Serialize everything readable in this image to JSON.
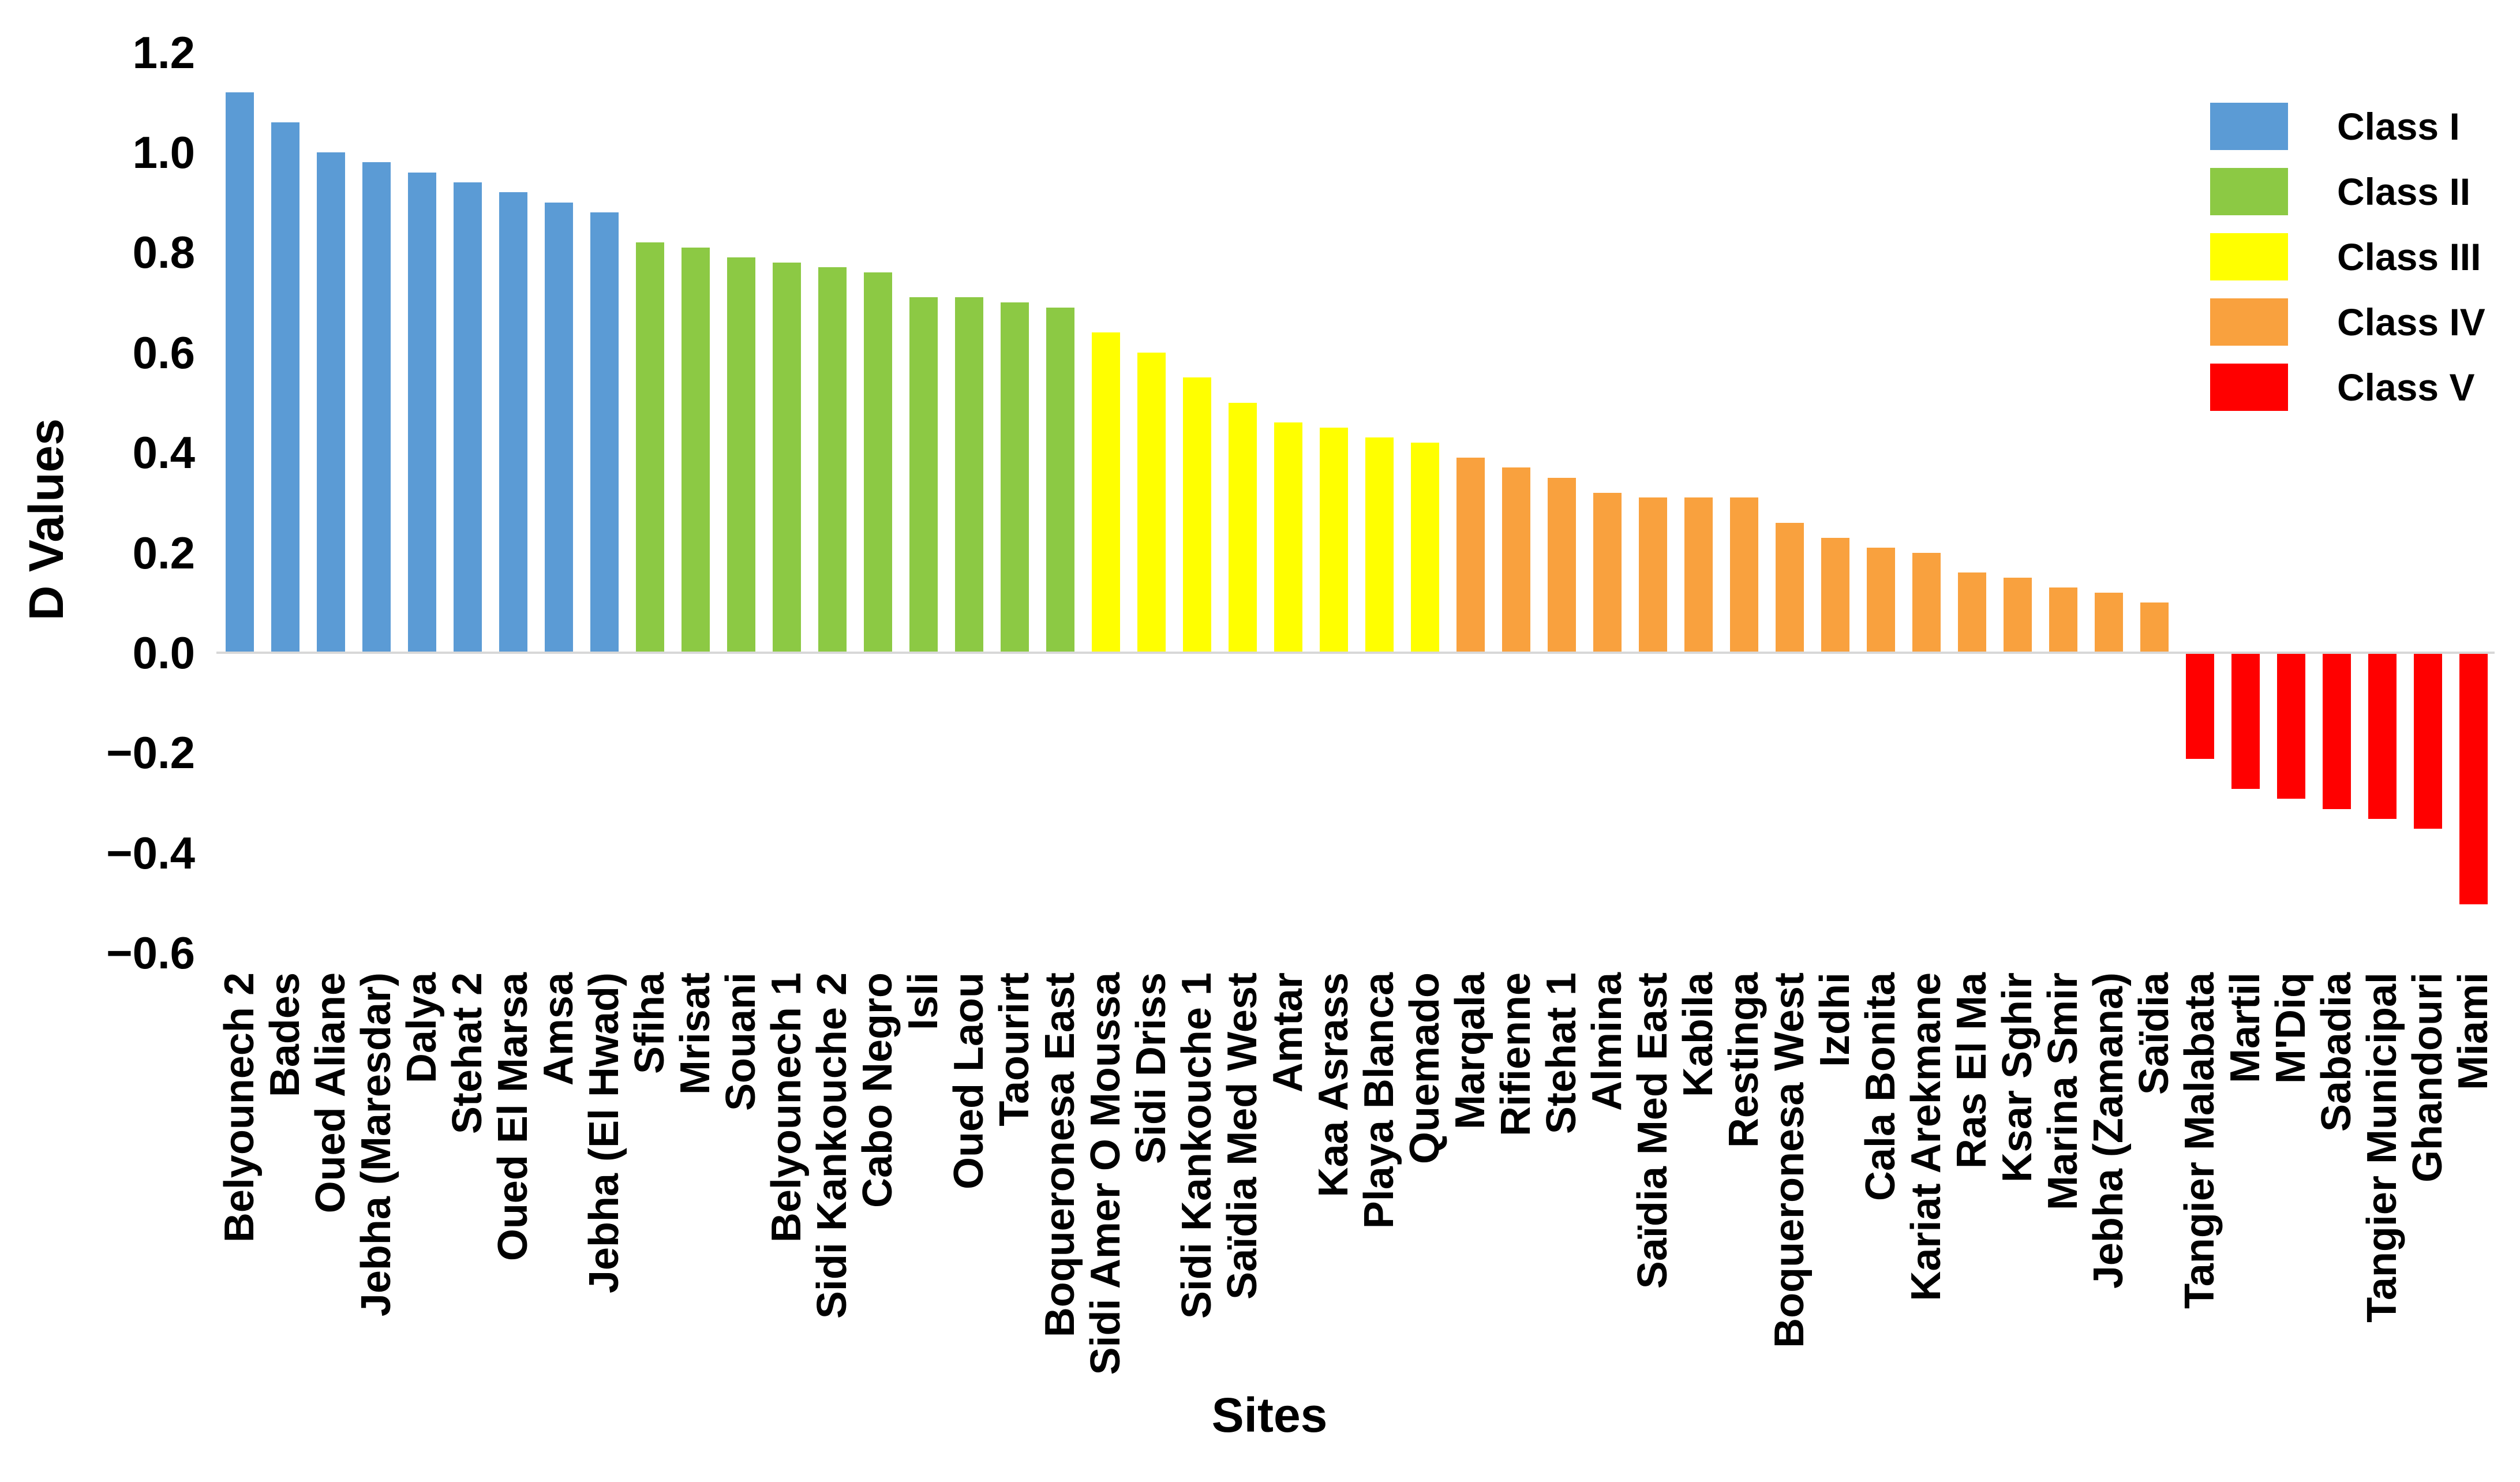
{
  "chart_data": {
    "type": "bar",
    "title": "",
    "xlabel": "Sites",
    "ylabel": "D Values",
    "ylim": [
      -0.6,
      1.2
    ],
    "ytick_step": 0.2,
    "grid": false,
    "legend_position": "top-right",
    "yticks": [
      {
        "label": "1.2",
        "value": 1.2
      },
      {
        "label": "1.0",
        "value": 1.0
      },
      {
        "label": "0.8",
        "value": 0.8
      },
      {
        "label": "0.6",
        "value": 0.6
      },
      {
        "label": "0.4",
        "value": 0.4
      },
      {
        "label": "0.2",
        "value": 0.2
      },
      {
        "label": "0.0",
        "value": 0.0
      },
      {
        "label": "−0.2",
        "value": -0.2
      },
      {
        "label": "−0.4",
        "value": -0.4
      },
      {
        "label": "−0.6",
        "value": -0.6
      }
    ],
    "classes": [
      {
        "name": "Class I",
        "color": "#5B9BD5"
      },
      {
        "name": "Class II",
        "color": "#8CC944"
      },
      {
        "name": "Class III",
        "color": "#FFFF00"
      },
      {
        "name": "Class IV",
        "color": "#F9A13E"
      },
      {
        "name": "Class V",
        "color": "#FF0000"
      }
    ],
    "series": [
      {
        "site": "Belyounech 2",
        "class": "Class I",
        "value": 1.12
      },
      {
        "site": "Bades",
        "class": "Class I",
        "value": 1.06
      },
      {
        "site": "Oued Aliane",
        "class": "Class I",
        "value": 1.0
      },
      {
        "site": "Jebha (Maresdar)",
        "class": "Class I",
        "value": 0.98
      },
      {
        "site": "Dalya",
        "class": "Class I",
        "value": 0.96
      },
      {
        "site": "Stehat 2",
        "class": "Class I",
        "value": 0.94
      },
      {
        "site": "Oued El Marsa",
        "class": "Class I",
        "value": 0.92
      },
      {
        "site": "Amsa",
        "class": "Class I",
        "value": 0.9
      },
      {
        "site": "Jebha (El Hwad)",
        "class": "Class I",
        "value": 0.88
      },
      {
        "site": "Sfiha",
        "class": "Class II",
        "value": 0.82
      },
      {
        "site": "Mrisat",
        "class": "Class II",
        "value": 0.81
      },
      {
        "site": "Souani",
        "class": "Class II",
        "value": 0.79
      },
      {
        "site": "Belyounech 1",
        "class": "Class II",
        "value": 0.78
      },
      {
        "site": "Sidi Kankouche 2",
        "class": "Class II",
        "value": 0.77
      },
      {
        "site": "Cabo Negro",
        "class": "Class II",
        "value": 0.76
      },
      {
        "site": "Isli",
        "class": "Class II",
        "value": 0.71
      },
      {
        "site": "Oued Laou",
        "class": "Class II",
        "value": 0.71
      },
      {
        "site": "Taourirt",
        "class": "Class II",
        "value": 0.7
      },
      {
        "site": "Boqueronesa East",
        "class": "Class II",
        "value": 0.69
      },
      {
        "site": "Sidi Amer O Moussa",
        "class": "Class III",
        "value": 0.64
      },
      {
        "site": "Sidi Driss",
        "class": "Class III",
        "value": 0.6
      },
      {
        "site": "Sidi Kankouche 1",
        "class": "Class III",
        "value": 0.55
      },
      {
        "site": "Saïdia Med West",
        "class": "Class III",
        "value": 0.5
      },
      {
        "site": "Amtar",
        "class": "Class III",
        "value": 0.46
      },
      {
        "site": "Kaa Asrass",
        "class": "Class III",
        "value": 0.45
      },
      {
        "site": "Playa Blanca",
        "class": "Class III",
        "value": 0.43
      },
      {
        "site": "Quemado",
        "class": "Class III",
        "value": 0.42
      },
      {
        "site": "Marqala",
        "class": "Class IV",
        "value": 0.39
      },
      {
        "site": "Rifienne",
        "class": "Class IV",
        "value": 0.37
      },
      {
        "site": "Stehat 1",
        "class": "Class IV",
        "value": 0.35
      },
      {
        "site": "Almina",
        "class": "Class IV",
        "value": 0.32
      },
      {
        "site": "Saïdia Med East",
        "class": "Class IV",
        "value": 0.31
      },
      {
        "site": "Kabila",
        "class": "Class IV",
        "value": 0.31
      },
      {
        "site": "Restinga",
        "class": "Class IV",
        "value": 0.31
      },
      {
        "site": "Boqueronesa West",
        "class": "Class IV",
        "value": 0.26
      },
      {
        "site": "Izdhi",
        "class": "Class IV",
        "value": 0.23
      },
      {
        "site": "Cala Bonita",
        "class": "Class IV",
        "value": 0.21
      },
      {
        "site": "Kariat Arekmane",
        "class": "Class IV",
        "value": 0.2
      },
      {
        "site": "Ras El Ma",
        "class": "Class IV",
        "value": 0.16
      },
      {
        "site": "Ksar Sghir",
        "class": "Class IV",
        "value": 0.15
      },
      {
        "site": "Marina Smir",
        "class": "Class IV",
        "value": 0.13
      },
      {
        "site": "Jebha (Zamana)",
        "class": "Class IV",
        "value": 0.12
      },
      {
        "site": "Saïdia",
        "class": "Class IV",
        "value": 0.1
      },
      {
        "site": "Tangier Malabata",
        "class": "Class V",
        "value": -0.21
      },
      {
        "site": "Martil",
        "class": "Class V",
        "value": -0.27
      },
      {
        "site": "M'Diq",
        "class": "Class V",
        "value": -0.29
      },
      {
        "site": "Sabadia",
        "class": "Class V",
        "value": -0.31
      },
      {
        "site": "Tangier Municipal",
        "class": "Class V",
        "value": -0.33
      },
      {
        "site": "Ghandouri",
        "class": "Class V",
        "value": -0.35
      },
      {
        "site": "Miami",
        "class": "Class V",
        "value": -0.5
      }
    ],
    "legend": [
      {
        "label": "Class I",
        "color": "#5B9BD5"
      },
      {
        "label": "Class II",
        "color": "#8CC944"
      },
      {
        "label": "Class III",
        "color": "#FFFF00"
      },
      {
        "label": "Class IV",
        "color": "#F9A13E"
      },
      {
        "label": "Class V",
        "color": "#FF0000"
      }
    ]
  }
}
